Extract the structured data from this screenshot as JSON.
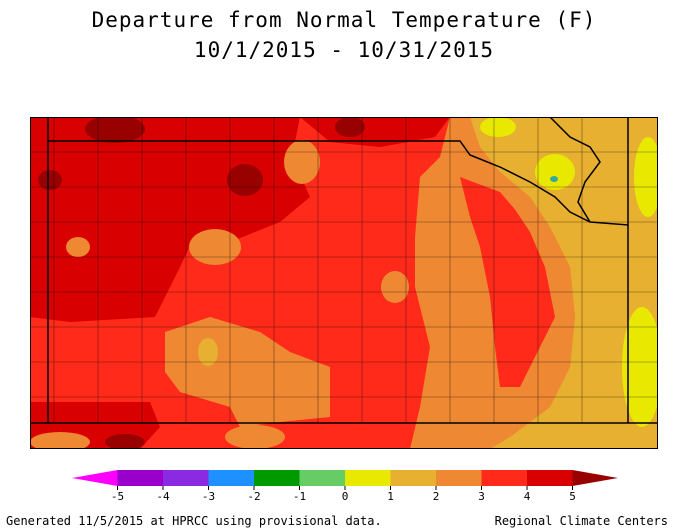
{
  "title": {
    "line1": "Departure from Normal Temperature (F)",
    "line2": "10/1/2015 - 10/31/2015"
  },
  "legend": {
    "ticks": [
      "-5",
      "-4",
      "-3",
      "-2",
      "-1",
      "0",
      "1",
      "2",
      "3",
      "4",
      "5"
    ],
    "colors": [
      "#ff00ff",
      "#9900cc",
      "#8a2be2",
      "#1e90ff",
      "#009900",
      "#66cc66",
      "#e8e800",
      "#e8b030",
      "#ee8833",
      "#ff2a1a",
      "#d80000",
      "#990000"
    ]
  },
  "map_colors": {
    "lt1": "#e8e800",
    "c1_2": "#e8b030",
    "c2_3": "#ee8833",
    "c3_4": "#ff2a1a",
    "c4_5": "#d80000",
    "gt5": "#990000",
    "neg_spot": "#33aa99"
  },
  "footer": {
    "left": "Generated 11/5/2015 at HPRCC using provisional data.",
    "right": "Regional Climate Centers"
  }
}
